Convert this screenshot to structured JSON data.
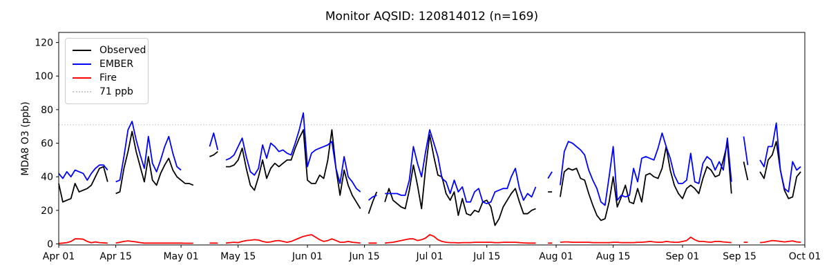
{
  "title": "Monitor AQSID: 120814012 (n=169)",
  "ylabel": "MDA8 O3 (ppb)",
  "legend": {
    "items": [
      {
        "label": "Observed",
        "color": "#000000",
        "style": "solid"
      },
      {
        "label": "EMBER",
        "color": "#0000ff",
        "style": "solid"
      },
      {
        "label": "Fire",
        "color": "#ff0000",
        "style": "solid"
      },
      {
        "label": "71 ppb",
        "color": "#c9c9c9",
        "style": "dotted"
      }
    ]
  },
  "chart_data": {
    "type": "line",
    "title": "Monitor AQSID: 120814012 (n=169)",
    "ylabel": "MDA8 O3 (ppb)",
    "grid": false,
    "legend_position": "upper left",
    "x_axis": {
      "unit": "day offset from Apr 01",
      "n_days": 183,
      "ticks": [
        {
          "label": "Apr 01",
          "day": 0
        },
        {
          "label": "Apr 15",
          "day": 14
        },
        {
          "label": "May 01",
          "day": 30
        },
        {
          "label": "May 15",
          "day": 44
        },
        {
          "label": "Jun 01",
          "day": 61
        },
        {
          "label": "Jun 15",
          "day": 75
        },
        {
          "label": "Jul 01",
          "day": 91
        },
        {
          "label": "Jul 15",
          "day": 105
        },
        {
          "label": "Aug 01",
          "day": 122
        },
        {
          "label": "Aug 15",
          "day": 136
        },
        {
          "label": "Sep 01",
          "day": 153
        },
        {
          "label": "Sep 15",
          "day": 167
        },
        {
          "label": "Oct 01",
          "day": 183
        }
      ]
    },
    "yticks": [
      0,
      20,
      40,
      60,
      80,
      100,
      120
    ],
    "ylim": [
      -1,
      126
    ],
    "threshold": {
      "value": 71,
      "label": "71 ppb",
      "color": "#c9c9c9",
      "linestyle": "dotted"
    },
    "series": [
      {
        "name": "Observed",
        "color": "#000000",
        "values": [
          36,
          25,
          26,
          27,
          36,
          31,
          32,
          33,
          35,
          40,
          45,
          46,
          37,
          null,
          30,
          31,
          45,
          55,
          67,
          55,
          46,
          37,
          52,
          38,
          35,
          42,
          47,
          51,
          44,
          40,
          38,
          36,
          36,
          35,
          null,
          null,
          null,
          52,
          53,
          55,
          null,
          46,
          46,
          47,
          50,
          57,
          45,
          35,
          32,
          40,
          50,
          39,
          45,
          48,
          46,
          48,
          50,
          50,
          57,
          63,
          68,
          38,
          36,
          36,
          41,
          39,
          50,
          68,
          45,
          29,
          44,
          35,
          29,
          25,
          21,
          null,
          18,
          25,
          31,
          null,
          25,
          33,
          26,
          24,
          22,
          21,
          32,
          47,
          35,
          21,
          45,
          65,
          52,
          41,
          40,
          30,
          26,
          31,
          17,
          27,
          18,
          17,
          20,
          19,
          25,
          26,
          22,
          11,
          15,
          22,
          26,
          30,
          33,
          25,
          18,
          18,
          20,
          21,
          null,
          null,
          31,
          31,
          null,
          28,
          43,
          45,
          44,
          45,
          39,
          38,
          30,
          23,
          17,
          14,
          15,
          25,
          40,
          22,
          28,
          35,
          25,
          24,
          33,
          25,
          41,
          42,
          40,
          39,
          45,
          58,
          44,
          35,
          30,
          27,
          33,
          35,
          33,
          30,
          39,
          46,
          44,
          40,
          41,
          50,
          60,
          30,
          null,
          null,
          49,
          38,
          null,
          null,
          43,
          39,
          50,
          53,
          61,
          44,
          32,
          27,
          28,
          40,
          43
        ]
      },
      {
        "name": "EMBER",
        "color": "#0000ff",
        "values": [
          42,
          39,
          43,
          40,
          44,
          43,
          42,
          38,
          42,
          45,
          47,
          47,
          44,
          null,
          37,
          38,
          52,
          68,
          73,
          62,
          53,
          45,
          64,
          48,
          43,
          50,
          58,
          64,
          54,
          46,
          44,
          null,
          null,
          null,
          null,
          null,
          null,
          58,
          66,
          56,
          null,
          50,
          51,
          53,
          58,
          63,
          52,
          43,
          41,
          45,
          59,
          51,
          60,
          58,
          55,
          56,
          54,
          53,
          60,
          68,
          78,
          46,
          54,
          56,
          57,
          58,
          59,
          61,
          45,
          36,
          52,
          40,
          37,
          33,
          31,
          null,
          26,
          28,
          29,
          null,
          30,
          30,
          30,
          30,
          29,
          29,
          38,
          58,
          48,
          40,
          55,
          68,
          60,
          52,
          39,
          37,
          30,
          38,
          31,
          34,
          25,
          25,
          31,
          33,
          25,
          24,
          25,
          31,
          32,
          33,
          33,
          40,
          45,
          33,
          26,
          30,
          28,
          34,
          null,
          null,
          39,
          43,
          null,
          35,
          55,
          61,
          60,
          58,
          56,
          53,
          44,
          38,
          33,
          25,
          23,
          40,
          58,
          26,
          29,
          28,
          29,
          45,
          37,
          51,
          52,
          51,
          50,
          57,
          66,
          58,
          51,
          41,
          36,
          36,
          38,
          54,
          37,
          36,
          48,
          52,
          50,
          44,
          49,
          44,
          63,
          37,
          null,
          null,
          64,
          47,
          null,
          null,
          50,
          46,
          58,
          58,
          72,
          44,
          33,
          31,
          49,
          44,
          46
        ]
      },
      {
        "name": "Fire",
        "color": "#ff0000",
        "values": [
          0.3,
          0.5,
          0.8,
          1.5,
          3,
          3,
          2.8,
          1.5,
          0.7,
          1.2,
          0.8,
          0.6,
          0.5,
          null,
          0.5,
          1,
          1.5,
          1.8,
          1.5,
          1.2,
          0.8,
          0.5,
          0.5,
          0.5,
          0.5,
          0.5,
          0.5,
          0.5,
          0.5,
          0.5,
          0.5,
          0.4,
          0.4,
          0.4,
          null,
          null,
          null,
          0.5,
          0.5,
          0.5,
          null,
          0.5,
          0.8,
          1,
          0.8,
          1.5,
          2,
          2.2,
          2.5,
          2.3,
          1.5,
          1,
          1.2,
          1.8,
          2,
          1.5,
          1,
          1.5,
          2.5,
          3.5,
          4.5,
          5,
          5.5,
          4,
          2.5,
          1.5,
          2,
          3,
          2,
          1,
          1,
          1.5,
          1,
          0.8,
          0.5,
          null,
          0.5,
          0.5,
          0.5,
          null,
          0.5,
          0.8,
          1,
          1.5,
          2,
          2.5,
          3,
          3,
          2,
          2.5,
          3.5,
          5.5,
          4.5,
          2.5,
          1.5,
          1,
          0.8,
          0.8,
          0.6,
          0.8,
          0.8,
          0.8,
          1,
          1,
          1,
          1,
          1,
          0.8,
          0.8,
          1,
          1,
          1,
          1,
          0.8,
          0.6,
          0.5,
          0.5,
          0.5,
          null,
          null,
          0.5,
          0.5,
          null,
          1,
          1.2,
          1.2,
          1,
          1,
          1,
          1,
          1,
          0.8,
          0.8,
          0.8,
          0.8,
          0.8,
          1,
          1,
          0.8,
          0.8,
          0.8,
          0.8,
          1,
          1,
          1.2,
          1.5,
          1.2,
          1,
          1,
          1.5,
          1.2,
          1,
          1,
          1.5,
          2,
          4,
          2.5,
          1.5,
          1.5,
          1.2,
          1,
          1.5,
          1.5,
          1.2,
          1,
          0.8,
          null,
          null,
          1,
          1,
          null,
          null,
          0.8,
          1,
          1.5,
          2,
          1.8,
          1.5,
          1.2,
          1.5,
          1.8,
          1.2,
          1
        ]
      }
    ]
  }
}
